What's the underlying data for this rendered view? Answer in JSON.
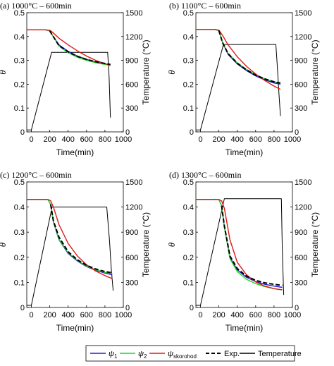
{
  "chart_data": [
    {
      "type": "line",
      "title": "(a) 1000°C – 600min",
      "xlabel": "Time(min)",
      "ylabel": "θ",
      "y2label": "Temperature (°C)",
      "xlim": [
        -50,
        1000
      ],
      "ylim": [
        0,
        0.5
      ],
      "y2lim": [
        0,
        1500
      ],
      "xticks": [
        0,
        200,
        400,
        600,
        800,
        1000
      ],
      "yticks": [
        0,
        0.1,
        0.2,
        0.3,
        0.4,
        0.5
      ],
      "y2ticks": [
        0,
        300,
        600,
        900,
        1200,
        1500
      ],
      "grid": false,
      "series": [
        {
          "name": "ψ1",
          "color": "#1f1fd6",
          "style": "solid",
          "x": [
            -50,
            150,
            200,
            230,
            300,
            400,
            500,
            600,
            700,
            800,
            860
          ],
          "y": [
            0.428,
            0.428,
            0.424,
            0.405,
            0.365,
            0.338,
            0.318,
            0.304,
            0.293,
            0.285,
            0.28
          ]
        },
        {
          "name": "ψ2",
          "color": "#1fd61f",
          "style": "solid",
          "x": [
            -50,
            150,
            200,
            230,
            300,
            400,
            500,
            600,
            700,
            800,
            860
          ],
          "y": [
            0.428,
            0.428,
            0.424,
            0.405,
            0.36,
            0.332,
            0.313,
            0.3,
            0.29,
            0.283,
            0.278
          ]
        },
        {
          "name": "ψskorohod",
          "color": "#e01818",
          "style": "solid",
          "x": [
            -50,
            150,
            200,
            230,
            300,
            400,
            500,
            600,
            700,
            800,
            860
          ],
          "y": [
            0.428,
            0.428,
            0.426,
            0.418,
            0.393,
            0.365,
            0.34,
            0.318,
            0.3,
            0.286,
            0.28
          ]
        },
        {
          "name": "Exp.",
          "color": "#000000",
          "style": "dashed",
          "x": [
            200,
            230,
            300,
            400,
            500,
            600,
            700,
            800,
            860
          ],
          "y": [
            0.424,
            0.405,
            0.362,
            0.336,
            0.317,
            0.304,
            0.294,
            0.287,
            0.283
          ]
        },
        {
          "name": "Temperature",
          "color": "#000000",
          "style": "solid",
          "axis": "right",
          "x": [
            -50,
            0,
            220,
            830,
            845,
            860
          ],
          "y": [
            25,
            25,
            1000,
            1000,
            700,
            180
          ]
        }
      ]
    },
    {
      "type": "line",
      "title": "(b) 1100°C – 600min",
      "xlabel": "Time(min)",
      "ylabel": "θ",
      "y2label": "Temperature (°C)",
      "xlim": [
        -50,
        1000
      ],
      "ylim": [
        0,
        0.5
      ],
      "y2lim": [
        0,
        1500
      ],
      "xticks": [
        0,
        200,
        400,
        600,
        800,
        1000
      ],
      "yticks": [
        0,
        0.1,
        0.2,
        0.3,
        0.4,
        0.5
      ],
      "y2ticks": [
        0,
        300,
        600,
        900,
        1200,
        1500
      ],
      "grid": false,
      "series": [
        {
          "name": "ψ1",
          "color": "#1f1fd6",
          "style": "solid",
          "x": [
            -50,
            150,
            200,
            240,
            300,
            400,
            500,
            600,
            700,
            800,
            870
          ],
          "y": [
            0.43,
            0.43,
            0.425,
            0.375,
            0.325,
            0.285,
            0.257,
            0.235,
            0.218,
            0.205,
            0.2
          ]
        },
        {
          "name": "ψ2",
          "color": "#1fd61f",
          "style": "solid",
          "x": [
            -50,
            150,
            200,
            240,
            300,
            400,
            500,
            600,
            700,
            800,
            870
          ],
          "y": [
            0.43,
            0.43,
            0.425,
            0.375,
            0.33,
            0.29,
            0.262,
            0.24,
            0.223,
            0.21,
            0.205
          ]
        },
        {
          "name": "ψskorohod",
          "color": "#e01818",
          "style": "solid",
          "x": [
            -50,
            150,
            200,
            240,
            300,
            400,
            500,
            600,
            700,
            800,
            870
          ],
          "y": [
            0.43,
            0.43,
            0.427,
            0.405,
            0.365,
            0.315,
            0.275,
            0.243,
            0.215,
            0.192,
            0.178
          ]
        },
        {
          "name": "Exp.",
          "color": "#000000",
          "style": "dashed",
          "x": [
            200,
            240,
            300,
            400,
            500,
            600,
            700,
            800,
            870
          ],
          "y": [
            0.425,
            0.375,
            0.328,
            0.288,
            0.26,
            0.238,
            0.222,
            0.21,
            0.205
          ]
        },
        {
          "name": "Temperature",
          "color": "#000000",
          "style": "solid",
          "axis": "right",
          "x": [
            -50,
            0,
            250,
            820,
            840,
            855,
            870
          ],
          "y": [
            25,
            25,
            1100,
            1100,
            750,
            450,
            200
          ]
        }
      ]
    },
    {
      "type": "line",
      "title": "(c) 1200°C – 600min",
      "xlabel": "Time(min)",
      "ylabel": "θ",
      "y2label": "Temperature (°C)",
      "xlim": [
        -50,
        1000
      ],
      "ylim": [
        0,
        0.5
      ],
      "y2lim": [
        0,
        1500
      ],
      "xticks": [
        0,
        200,
        400,
        600,
        800,
        1000
      ],
      "yticks": [
        0,
        0.1,
        0.2,
        0.3,
        0.4,
        0.5
      ],
      "y2ticks": [
        0,
        300,
        600,
        900,
        1200,
        1500
      ],
      "grid": false,
      "series": [
        {
          "name": "ψ1",
          "color": "#1f1fd6",
          "style": "solid",
          "x": [
            -50,
            180,
            210,
            240,
            300,
            400,
            500,
            600,
            700,
            800,
            880
          ],
          "y": [
            0.43,
            0.43,
            0.41,
            0.34,
            0.27,
            0.215,
            0.185,
            0.163,
            0.148,
            0.137,
            0.13
          ]
        },
        {
          "name": "ψ2",
          "color": "#1fd61f",
          "style": "solid",
          "x": [
            -50,
            180,
            210,
            240,
            300,
            400,
            500,
            600,
            700,
            800,
            880
          ],
          "y": [
            0.43,
            0.43,
            0.41,
            0.34,
            0.272,
            0.218,
            0.187,
            0.165,
            0.15,
            0.14,
            0.135
          ]
        },
        {
          "name": "ψskorohod",
          "color": "#e01818",
          "style": "solid",
          "x": [
            -50,
            180,
            210,
            240,
            300,
            400,
            500,
            600,
            700,
            800,
            880
          ],
          "y": [
            0.43,
            0.43,
            0.425,
            0.4,
            0.33,
            0.255,
            0.205,
            0.17,
            0.145,
            0.127,
            0.115
          ]
        },
        {
          "name": "Exp.",
          "color": "#000000",
          "style": "dashed",
          "x": [
            210,
            240,
            300,
            400,
            500,
            600,
            700,
            800,
            880
          ],
          "y": [
            0.41,
            0.345,
            0.28,
            0.222,
            0.19,
            0.168,
            0.153,
            0.143,
            0.138
          ]
        },
        {
          "name": "Temperature",
          "color": "#000000",
          "style": "solid",
          "axis": "right",
          "x": [
            -50,
            0,
            225,
            820,
            850,
            870,
            890
          ],
          "y": [
            25,
            25,
            1200,
            1200,
            800,
            450,
            200
          ]
        }
      ]
    },
    {
      "type": "line",
      "title": "(d) 1300°C – 600min",
      "xlabel": "Time(min)",
      "ylabel": "θ",
      "y2label": "Temperature (°C)",
      "xlim": [
        -50,
        1000
      ],
      "ylim": [
        0,
        0.5
      ],
      "y2lim": [
        0,
        1500
      ],
      "xticks": [
        0,
        200,
        400,
        600,
        800,
        1000
      ],
      "yticks": [
        0,
        0.1,
        0.2,
        0.3,
        0.4,
        0.5
      ],
      "y2ticks": [
        0,
        300,
        600,
        900,
        1200,
        1500
      ],
      "grid": false,
      "series": [
        {
          "name": "ψ1",
          "color": "#1f1fd6",
          "style": "solid",
          "x": [
            -50,
            200,
            230,
            260,
            320,
            400,
            500,
            600,
            700,
            800,
            890
          ],
          "y": [
            0.43,
            0.43,
            0.405,
            0.32,
            0.2,
            0.15,
            0.12,
            0.103,
            0.092,
            0.085,
            0.08
          ]
        },
        {
          "name": "ψ2",
          "color": "#1fd61f",
          "style": "solid",
          "x": [
            -50,
            200,
            230,
            260,
            320,
            400,
            500,
            600,
            700,
            800,
            890
          ],
          "y": [
            0.43,
            0.43,
            0.405,
            0.32,
            0.195,
            0.143,
            0.112,
            0.095,
            0.083,
            0.075,
            0.07
          ]
        },
        {
          "name": "ψskorohod",
          "color": "#e01818",
          "style": "solid",
          "x": [
            -50,
            200,
            230,
            260,
            320,
            400,
            500,
            600,
            700,
            800,
            890
          ],
          "y": [
            0.43,
            0.43,
            0.425,
            0.395,
            0.27,
            0.18,
            0.13,
            0.102,
            0.085,
            0.075,
            0.07
          ]
        },
        {
          "name": "Exp.",
          "color": "#000000",
          "style": "dashed",
          "x": [
            230,
            260,
            320,
            400,
            500,
            600,
            700,
            800,
            890
          ],
          "y": [
            0.405,
            0.325,
            0.205,
            0.155,
            0.125,
            0.108,
            0.098,
            0.092,
            0.088
          ]
        },
        {
          "name": "Temperature",
          "color": "#000000",
          "style": "solid",
          "axis": "right",
          "x": [
            -50,
            0,
            260,
            880,
            890,
            905
          ],
          "y": [
            25,
            25,
            1300,
            1300,
            700,
            150
          ]
        }
      ]
    }
  ],
  "legend": {
    "entries": [
      {
        "label": "ψ",
        "sub": "1",
        "color": "#1f1fd6",
        "style": "solid"
      },
      {
        "label": "ψ",
        "sub": "2",
        "color": "#1fd61f",
        "style": "solid"
      },
      {
        "label": "ψ",
        "sub": "skorohod",
        "color": "#e01818",
        "style": "solid"
      },
      {
        "label": "Exp.",
        "sub": "",
        "color": "#000000",
        "style": "dashed"
      },
      {
        "label": "Temperature",
        "sub": "",
        "color": "#000000",
        "style": "solid"
      }
    ],
    "placement": "bottom-center"
  }
}
